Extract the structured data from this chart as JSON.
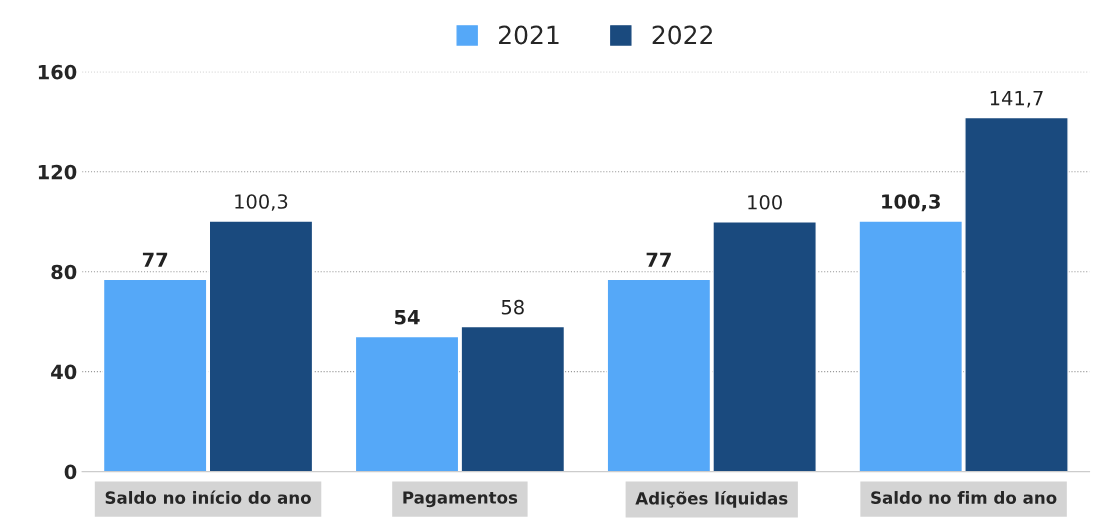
{
  "chart_data": {
    "type": "bar",
    "categories": [
      "Saldo no início do ano",
      "Pagamentos",
      "Adições líquidas",
      "Saldo no fim do ano"
    ],
    "series": [
      {
        "name": "2021",
        "color": "#55a8f8",
        "values": [
          77,
          54,
          77,
          100.3
        ],
        "value_labels": [
          "77",
          "54",
          "77",
          "100,3"
        ]
      },
      {
        "name": "2022",
        "color": "#1a4a7e",
        "values": [
          100.3,
          58,
          100,
          141.7
        ],
        "value_labels": [
          "100,3",
          "58",
          "100",
          "141,7"
        ]
      }
    ],
    "ylim": [
      0,
      160
    ],
    "yticks": [
      0,
      40,
      80,
      120,
      160
    ],
    "grid": "y",
    "legend": "top"
  }
}
